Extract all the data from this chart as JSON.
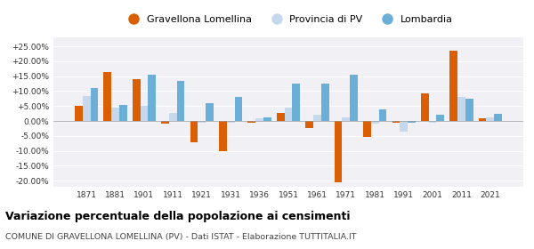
{
  "years": [
    1871,
    1881,
    1901,
    1911,
    1921,
    1931,
    1936,
    1951,
    1961,
    1971,
    1981,
    1991,
    2001,
    2011,
    2021
  ],
  "gravellona": [
    5.2,
    16.5,
    14.0,
    -0.8,
    -7.0,
    -10.2,
    -0.5,
    2.8,
    -2.5,
    -20.5,
    -5.3,
    -0.5,
    9.2,
    23.5,
    1.0
  ],
  "provincia": [
    8.5,
    4.5,
    5.0,
    2.8,
    -0.5,
    -0.5,
    0.8,
    4.5,
    2.2,
    1.2,
    -1.0,
    -3.5,
    -0.5,
    8.0,
    1.2
  ],
  "lombardia": [
    11.0,
    5.5,
    15.5,
    13.5,
    6.0,
    8.0,
    1.2,
    12.5,
    12.5,
    15.5,
    4.0,
    -0.5,
    2.0,
    7.5,
    2.5
  ],
  "color_gravellona": "#d95f02",
  "color_provincia": "#c6d9ec",
  "color_lombardia": "#6baed6",
  "title": "Variazione percentuale della popolazione ai censimenti",
  "subtitle": "COMUNE DI GRAVELLONA LOMELLINA (PV) - Dati ISTAT - Elaborazione TUTTITALIA.IT",
  "ylim": [
    -22,
    28
  ],
  "yticks": [
    -20,
    -15,
    -10,
    -5,
    0,
    5,
    10,
    15,
    20,
    25
  ],
  "bg_color": "#f0f0f5",
  "legend_labels": [
    "Gravellona Lomellina",
    "Provincia di PV",
    "Lombardia"
  ]
}
